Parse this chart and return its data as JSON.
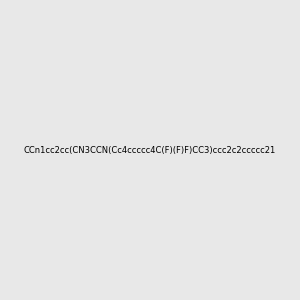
{
  "smiles": "CCn1cc2cc(CN3CCN(Cc4ccccc4C(F)(F)F)CC3)ccc2c2ccccc21",
  "background_color": "#e8e8e8",
  "bond_color": "#1a1a1a",
  "n_color": "#0000cc",
  "f_color": "#ff69b4",
  "title": "",
  "figsize": [
    3.0,
    3.0
  ],
  "dpi": 100
}
